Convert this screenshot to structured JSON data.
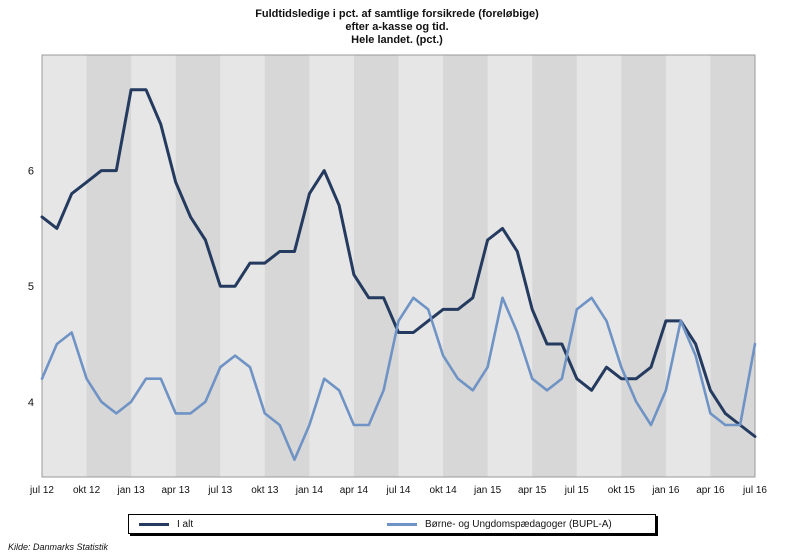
{
  "chart_data": {
    "type": "line",
    "title_lines": [
      "Fuldtidsledige i pct. af samtlige forsikrede (foreløbige)",
      "efter a-kasse og tid.",
      "Hele landet. (pct.)"
    ],
    "x_tick_labels": [
      "jul 12",
      "okt 12",
      "jan 13",
      "apr 13",
      "jul 13",
      "okt 13",
      "jan 14",
      "apr 14",
      "jul 14",
      "okt 14",
      "jan 15",
      "apr 15",
      "jul 15",
      "okt 15",
      "jan 16",
      "apr 16",
      "jul 16"
    ],
    "y_ticks": [
      4,
      5,
      6
    ],
    "ylim": [
      3.35,
      7.0
    ],
    "grid": "vertical bands",
    "series": [
      {
        "name": "I alt",
        "color": "#243a5e",
        "values": [
          5.6,
          5.5,
          5.8,
          5.9,
          6.0,
          6.0,
          6.7,
          6.7,
          6.4,
          5.9,
          5.6,
          5.4,
          5.0,
          5.0,
          5.2,
          5.2,
          5.3,
          5.3,
          5.8,
          6.0,
          5.7,
          5.1,
          4.9,
          4.9,
          4.6,
          4.6,
          4.7,
          4.8,
          4.8,
          4.9,
          5.4,
          5.5,
          5.3,
          4.8,
          4.5,
          4.5,
          4.2,
          4.1,
          4.3,
          4.2,
          4.2,
          4.3,
          4.7,
          4.7,
          4.5,
          4.1,
          3.9,
          3.8,
          3.7
        ]
      },
      {
        "name": "Børne- og Ungdomspædagoger (BUPL-A)",
        "color": "#6f93c4",
        "values": [
          4.2,
          4.5,
          4.6,
          4.2,
          4.0,
          3.9,
          4.0,
          4.2,
          4.2,
          3.9,
          3.9,
          4.0,
          4.3,
          4.4,
          4.3,
          3.9,
          3.8,
          3.5,
          3.8,
          4.2,
          4.1,
          3.8,
          3.8,
          4.1,
          4.7,
          4.9,
          4.8,
          4.4,
          4.2,
          4.1,
          4.3,
          4.9,
          4.6,
          4.2,
          4.1,
          4.2,
          4.8,
          4.9,
          4.7,
          4.3,
          4.0,
          3.8,
          4.1,
          4.7,
          4.4,
          3.9,
          3.8,
          3.8,
          4.5
        ]
      }
    ]
  },
  "legend": {
    "items": [
      {
        "label": "I alt",
        "color": "#243a5e"
      },
      {
        "label": "Børne- og Ungdomspædagoger (BUPL-A)",
        "color": "#6f93c4"
      }
    ]
  },
  "source": "Kilde: Danmarks Statistik"
}
